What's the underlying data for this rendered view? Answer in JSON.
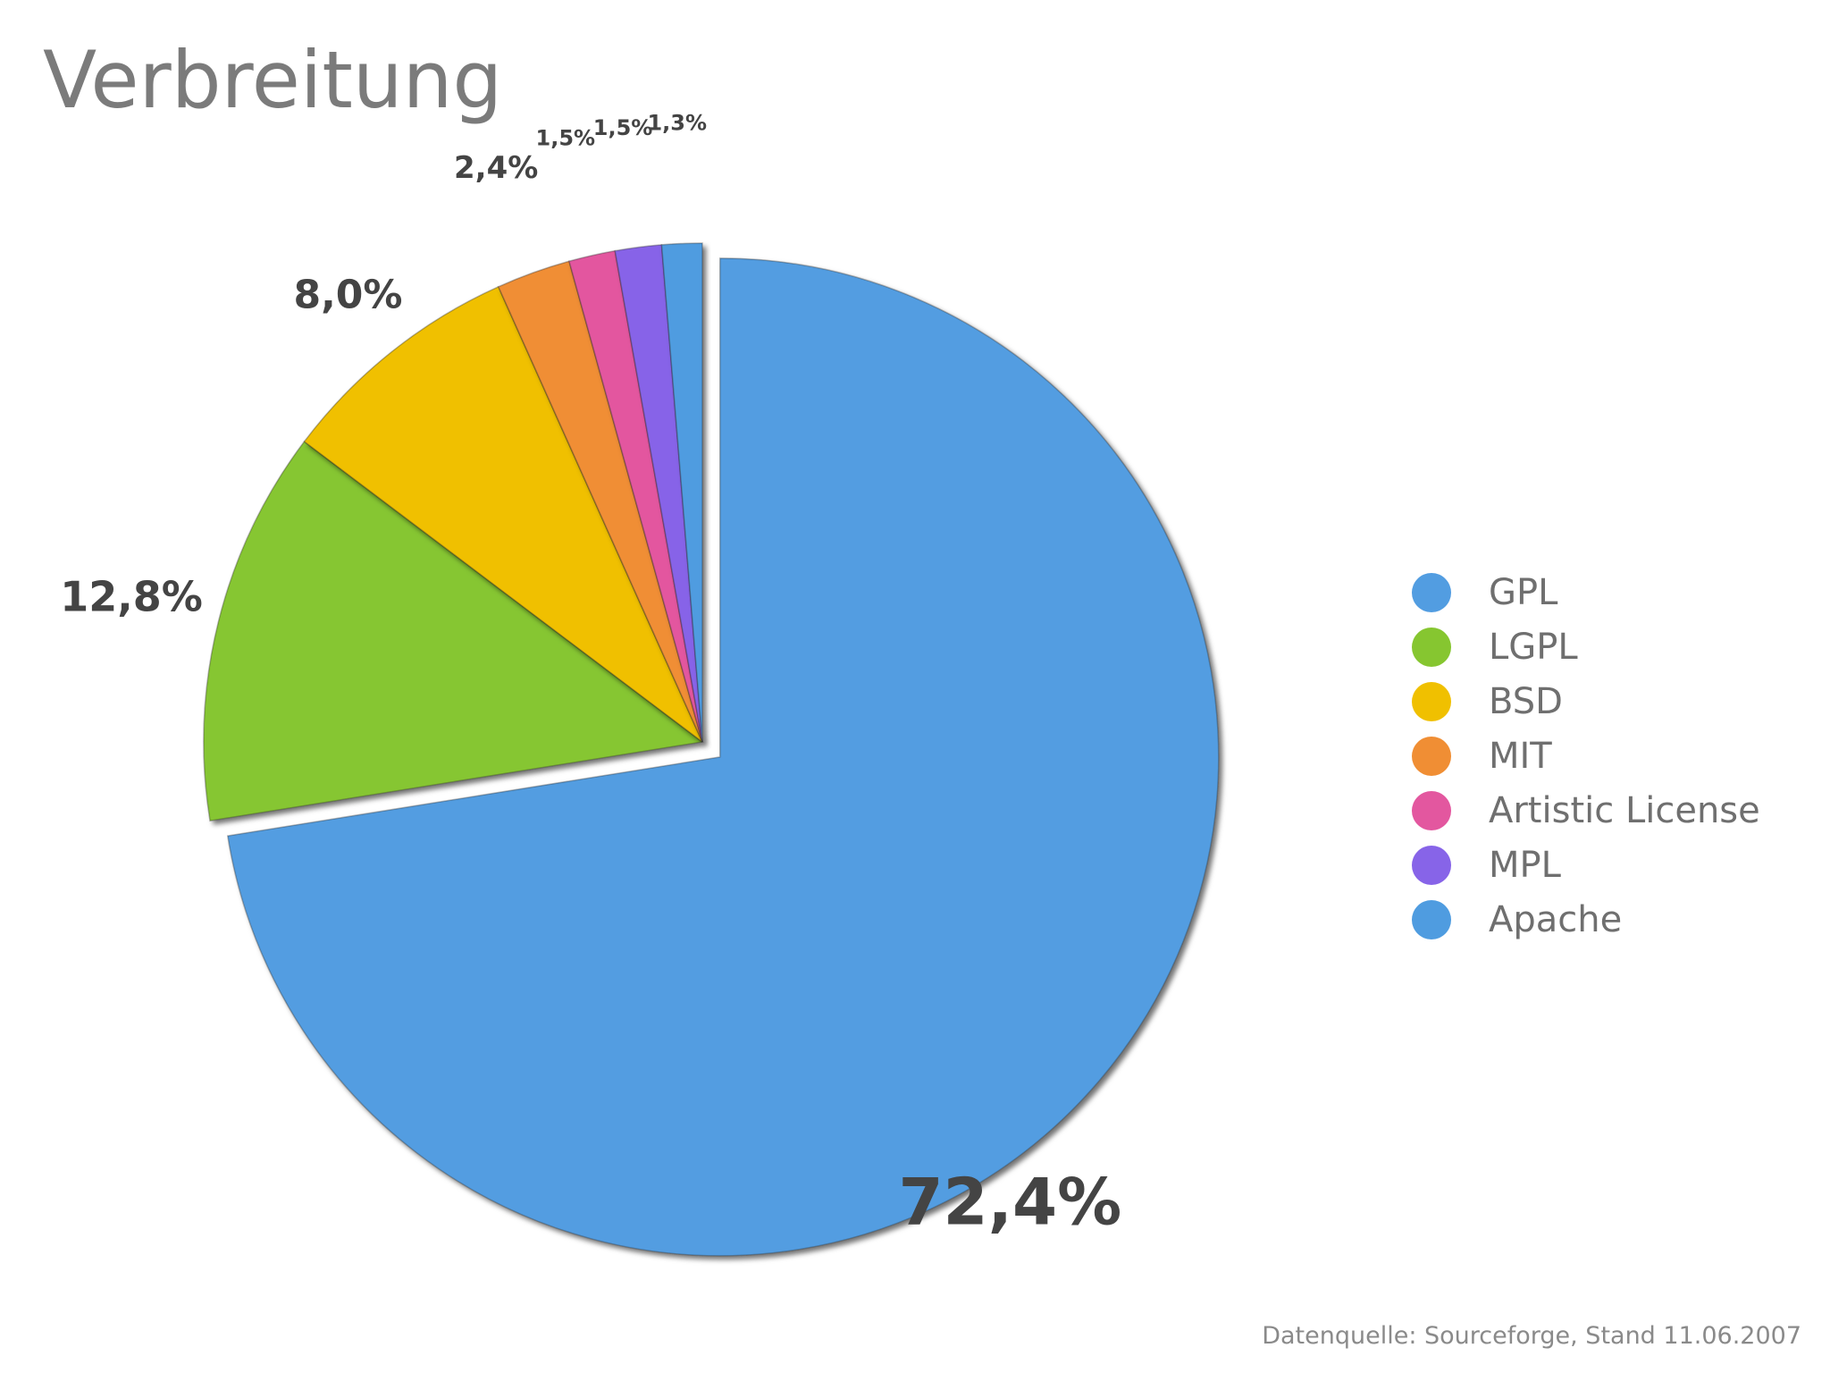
{
  "title": "Verbreitung",
  "source": "Datenquelle: Sourceforge, Stand 11.06.2007",
  "chart_data": {
    "type": "pie",
    "title": "Verbreitung",
    "legend_position": "right",
    "slices": [
      {
        "name": "GPL",
        "value": 72.4,
        "label": "72,4%",
        "color": "#529DE1",
        "exploded": true
      },
      {
        "name": "LGPL",
        "value": 12.8,
        "label": "12,8%",
        "color": "#86C630"
      },
      {
        "name": "BSD",
        "value": 8.0,
        "label": "8,0%",
        "color": "#F0C000"
      },
      {
        "name": "MIT",
        "value": 2.4,
        "label": "2,4%",
        "color": "#F08E34"
      },
      {
        "name": "Artistic License",
        "value": 1.5,
        "label": "1,5%",
        "color": "#E3579F"
      },
      {
        "name": "MPL",
        "value": 1.5,
        "label": "1,5%",
        "color": "#8764E8"
      },
      {
        "name": "Apache",
        "value": 1.3,
        "label": "1,3%",
        "color": "#4F9CE0"
      }
    ]
  },
  "legend": {
    "items": [
      {
        "label": "GPL",
        "color": "#529DE1"
      },
      {
        "label": "LGPL",
        "color": "#86C630"
      },
      {
        "label": "BSD",
        "color": "#F0C000"
      },
      {
        "label": "MIT",
        "color": "#F08E34"
      },
      {
        "label": "Artistic License",
        "color": "#E3579F"
      },
      {
        "label": "MPL",
        "color": "#8764E8"
      },
      {
        "label": "Apache",
        "color": "#4F9CE0"
      }
    ]
  }
}
